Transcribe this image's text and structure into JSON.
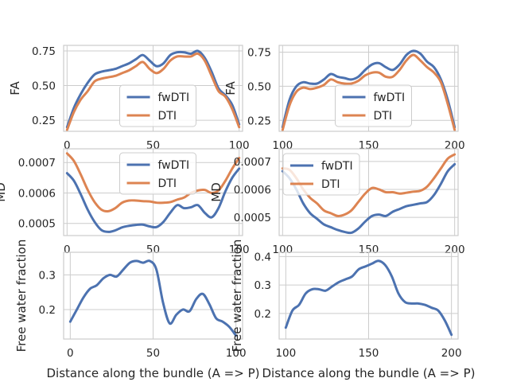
{
  "figure": {
    "background": "#ffffff",
    "grid_color": "#cccccc",
    "text_color": "#262626"
  },
  "series_styles": {
    "fwDTI": {
      "color": "#4c72b0"
    },
    "DTI": {
      "color": "#dd8452"
    }
  },
  "chart_data": [
    {
      "type": "line",
      "panel": "top-left",
      "xlabel": "",
      "ylabel": "FA",
      "xlim": [
        -2,
        102
      ],
      "ylim": [
        0.17,
        0.79
      ],
      "xticks": [
        0,
        50,
        100
      ],
      "xtick_labels": [
        "0",
        "50",
        "100"
      ],
      "yticks": [
        0.25,
        0.5,
        0.75
      ],
      "ytick_labels": [
        "0.25",
        "0.50",
        "0.75"
      ],
      "grid": true,
      "legend": {
        "position": "lower-center",
        "entries": [
          "fwDTI",
          "DTI"
        ]
      },
      "x": [
        0,
        4,
        8,
        12,
        16,
        20,
        24,
        28,
        32,
        36,
        40,
        44,
        48,
        52,
        56,
        60,
        64,
        68,
        72,
        76,
        80,
        84,
        88,
        92,
        96,
        100
      ],
      "series": [
        {
          "name": "fwDTI",
          "values": [
            0.2,
            0.34,
            0.44,
            0.52,
            0.58,
            0.6,
            0.61,
            0.62,
            0.64,
            0.66,
            0.69,
            0.72,
            0.68,
            0.64,
            0.66,
            0.72,
            0.74,
            0.74,
            0.73,
            0.75,
            0.7,
            0.6,
            0.48,
            0.43,
            0.36,
            0.22
          ]
        },
        {
          "name": "DTI",
          "values": [
            0.18,
            0.31,
            0.4,
            0.46,
            0.53,
            0.55,
            0.56,
            0.57,
            0.59,
            0.61,
            0.64,
            0.67,
            0.62,
            0.59,
            0.62,
            0.68,
            0.71,
            0.71,
            0.71,
            0.73,
            0.68,
            0.57,
            0.46,
            0.42,
            0.33,
            0.2
          ]
        }
      ]
    },
    {
      "type": "line",
      "panel": "top-right",
      "xlabel": "",
      "ylabel": "FA",
      "xlim": [
        98,
        202
      ],
      "ylim": [
        0.17,
        0.8
      ],
      "xticks": [
        100,
        150,
        200
      ],
      "xtick_labels": [
        "100",
        "150",
        "200"
      ],
      "yticks": [
        0.25,
        0.5,
        0.75
      ],
      "ytick_labels": [
        "0.25",
        "0.50",
        "0.75"
      ],
      "grid": true,
      "legend": {
        "position": "lower-center",
        "entries": [
          "fwDTI",
          "DTI"
        ]
      },
      "x": [
        100,
        104,
        108,
        112,
        116,
        120,
        124,
        128,
        132,
        136,
        140,
        144,
        148,
        152,
        156,
        160,
        164,
        168,
        172,
        176,
        180,
        184,
        188,
        192,
        196,
        200
      ],
      "series": [
        {
          "name": "fwDTI",
          "values": [
            0.2,
            0.4,
            0.5,
            0.53,
            0.52,
            0.52,
            0.55,
            0.59,
            0.57,
            0.56,
            0.55,
            0.57,
            0.62,
            0.66,
            0.67,
            0.64,
            0.62,
            0.66,
            0.73,
            0.76,
            0.74,
            0.68,
            0.64,
            0.55,
            0.4,
            0.2
          ]
        },
        {
          "name": "DTI",
          "values": [
            0.18,
            0.36,
            0.46,
            0.49,
            0.48,
            0.49,
            0.51,
            0.55,
            0.53,
            0.52,
            0.52,
            0.54,
            0.58,
            0.6,
            0.6,
            0.57,
            0.57,
            0.62,
            0.69,
            0.73,
            0.69,
            0.64,
            0.6,
            0.53,
            0.37,
            0.18
          ]
        }
      ]
    },
    {
      "type": "line",
      "panel": "middle-left",
      "xlabel": "",
      "ylabel": "MD",
      "xlim": [
        -2,
        102
      ],
      "ylim": [
        0.00046,
        0.000745
      ],
      "xticks": [
        0,
        50,
        100
      ],
      "xtick_labels": [
        "0",
        "50",
        "100"
      ],
      "yticks": [
        0.0005,
        0.0006,
        0.0007
      ],
      "ytick_labels": [
        "0.0005",
        "0.0006",
        "0.0007"
      ],
      "grid": true,
      "legend": {
        "position": "upper-center",
        "entries": [
          "fwDTI",
          "DTI"
        ]
      },
      "x": [
        0,
        4,
        8,
        12,
        16,
        20,
        24,
        28,
        32,
        36,
        40,
        44,
        48,
        52,
        56,
        60,
        64,
        68,
        72,
        76,
        80,
        84,
        88,
        92,
        96,
        100
      ],
      "series": [
        {
          "name": "fwDTI",
          "values": [
            0.000665,
            0.00064,
            0.000595,
            0.000545,
            0.000505,
            0.000478,
            0.000472,
            0.000477,
            0.000487,
            0.000492,
            0.000495,
            0.000496,
            0.00049,
            0.000488,
            0.000505,
            0.000535,
            0.00056,
            0.00055,
            0.000553,
            0.00056,
            0.000535,
            0.00052,
            0.00055,
            0.000605,
            0.00065,
            0.00068
          ]
        },
        {
          "name": "DTI",
          "values": [
            0.00073,
            0.000705,
            0.00066,
            0.00061,
            0.00057,
            0.000545,
            0.00054,
            0.00055,
            0.000568,
            0.000575,
            0.000575,
            0.000573,
            0.000572,
            0.000568,
            0.000568,
            0.00057,
            0.000578,
            0.000585,
            0.0006,
            0.000608,
            0.00061,
            0.0006,
            0.000608,
            0.00064,
            0.00068,
            0.000715
          ]
        }
      ]
    },
    {
      "type": "line",
      "panel": "middle-right",
      "xlabel": "",
      "ylabel": "MD",
      "xlim": [
        98,
        202
      ],
      "ylim": [
        0.000435,
        0.000745
      ],
      "xticks": [
        100,
        150,
        200
      ],
      "xtick_labels": [
        "100",
        "150",
        "200"
      ],
      "yticks": [
        0.0005,
        0.0006,
        0.0007
      ],
      "ytick_labels": [
        "0.0005",
        "0.0006",
        "0.0007"
      ],
      "grid": true,
      "legend": {
        "position": "upper-left",
        "entries": [
          "fwDTI",
          "DTI"
        ]
      },
      "x": [
        100,
        104,
        108,
        112,
        116,
        120,
        124,
        128,
        132,
        136,
        140,
        144,
        148,
        152,
        156,
        160,
        164,
        168,
        172,
        176,
        180,
        184,
        188,
        192,
        196,
        200
      ],
      "series": [
        {
          "name": "fwDTI",
          "values": [
            0.000665,
            0.00064,
            0.0006,
            0.00055,
            0.000515,
            0.000495,
            0.000475,
            0.000465,
            0.000455,
            0.000448,
            0.000445,
            0.00046,
            0.000485,
            0.000505,
            0.00051,
            0.000505,
            0.00052,
            0.00053,
            0.00054,
            0.000545,
            0.00055,
            0.000555,
            0.00058,
            0.00062,
            0.000665,
            0.00069
          ]
        },
        {
          "name": "DTI",
          "values": [
            0.000675,
            0.00067,
            0.00064,
            0.0006,
            0.00057,
            0.00055,
            0.000525,
            0.000515,
            0.000505,
            0.00051,
            0.000525,
            0.000555,
            0.000585,
            0.000605,
            0.0006,
            0.00059,
            0.00059,
            0.000585,
            0.000588,
            0.000592,
            0.000595,
            0.00061,
            0.00064,
            0.000675,
            0.00071,
            0.000725
          ]
        }
      ]
    },
    {
      "type": "line",
      "panel": "bottom-left",
      "xlabel": "Distance along the bundle (A => P)",
      "ylabel": "Free water fraction",
      "xlim": [
        -4,
        104
      ],
      "ylim": [
        0.115,
        0.365
      ],
      "xticks": [
        0,
        50,
        100
      ],
      "xtick_labels": [
        "0",
        "50",
        "100"
      ],
      "yticks": [
        0.2,
        0.3
      ],
      "ytick_labels": [
        "0.2",
        "0.3"
      ],
      "grid": true,
      "legend": null,
      "x": [
        0,
        4,
        8,
        12,
        16,
        20,
        24,
        28,
        32,
        36,
        40,
        44,
        48,
        52,
        56,
        60,
        64,
        68,
        72,
        76,
        80,
        84,
        88,
        92,
        96,
        100
      ],
      "series": [
        {
          "name": "fwDTI",
          "values": [
            0.165,
            0.2,
            0.235,
            0.26,
            0.27,
            0.29,
            0.3,
            0.295,
            0.315,
            0.335,
            0.34,
            0.335,
            0.34,
            0.315,
            0.22,
            0.16,
            0.185,
            0.2,
            0.195,
            0.23,
            0.245,
            0.215,
            0.175,
            0.165,
            0.15,
            0.125
          ]
        }
      ]
    },
    {
      "type": "line",
      "panel": "bottom-right",
      "xlabel": "Distance along the bundle (A => P)",
      "ylabel": "Free water fraction",
      "xlim": [
        96,
        204
      ],
      "ylim": [
        0.11,
        0.415
      ],
      "xticks": [
        100,
        150,
        200
      ],
      "xtick_labels": [
        "100",
        "150",
        "200"
      ],
      "yticks": [
        0.2,
        0.3,
        0.4
      ],
      "ytick_labels": [
        "0.2",
        "0.3",
        "0.4"
      ],
      "grid": true,
      "legend": null,
      "x": [
        100,
        104,
        108,
        112,
        116,
        120,
        124,
        128,
        132,
        136,
        140,
        144,
        148,
        152,
        156,
        160,
        164,
        168,
        172,
        176,
        180,
        184,
        188,
        192,
        196,
        200
      ],
      "series": [
        {
          "name": "fwDTI",
          "values": [
            0.15,
            0.21,
            0.23,
            0.27,
            0.285,
            0.285,
            0.28,
            0.295,
            0.31,
            0.32,
            0.33,
            0.355,
            0.365,
            0.375,
            0.385,
            0.37,
            0.33,
            0.27,
            0.24,
            0.235,
            0.235,
            0.23,
            0.22,
            0.21,
            0.175,
            0.125
          ]
        }
      ]
    }
  ]
}
